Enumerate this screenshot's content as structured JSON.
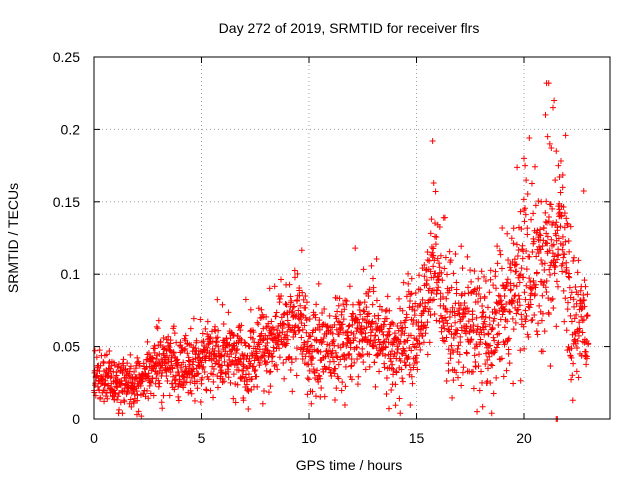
{
  "chart_data": {
    "type": "scatter",
    "title": "Day 272 of 2019, SRMTID for receiver flrs",
    "xlabel": "GPS time / hours",
    "ylabel": "SRMTID / TECUs",
    "xlim": [
      0,
      24
    ],
    "ylim": [
      0,
      0.25
    ],
    "xticks": [
      0,
      5,
      10,
      15,
      20
    ],
    "xtick_labels": [
      "0",
      "5",
      "10",
      "15",
      "20"
    ],
    "yticks": [
      0,
      0.05,
      0.1,
      0.15,
      0.2,
      0.25
    ],
    "ytick_labels": [
      "0",
      "0.05",
      "0.1",
      "0.15",
      "0.2",
      "0.25"
    ],
    "grid": true,
    "marker": "+",
    "color": "#ff0000",
    "trend": [
      {
        "x": 0.0,
        "y": 0.03
      },
      {
        "x": 1.0,
        "y": 0.025
      },
      {
        "x": 2.0,
        "y": 0.025
      },
      {
        "x": 3.0,
        "y": 0.04
      },
      {
        "x": 4.0,
        "y": 0.035
      },
      {
        "x": 5.0,
        "y": 0.04
      },
      {
        "x": 6.0,
        "y": 0.045
      },
      {
        "x": 7.0,
        "y": 0.04
      },
      {
        "x": 8.0,
        "y": 0.05
      },
      {
        "x": 9.0,
        "y": 0.065
      },
      {
        "x": 9.5,
        "y": 0.075
      },
      {
        "x": 10.0,
        "y": 0.045
      },
      {
        "x": 11.0,
        "y": 0.045
      },
      {
        "x": 12.0,
        "y": 0.06
      },
      {
        "x": 13.0,
        "y": 0.06
      },
      {
        "x": 14.0,
        "y": 0.05
      },
      {
        "x": 15.0,
        "y": 0.06
      },
      {
        "x": 15.8,
        "y": 0.1
      },
      {
        "x": 16.5,
        "y": 0.07
      },
      {
        "x": 17.5,
        "y": 0.065
      },
      {
        "x": 18.5,
        "y": 0.06
      },
      {
        "x": 19.5,
        "y": 0.085
      },
      {
        "x": 20.3,
        "y": 0.1
      },
      {
        "x": 21.0,
        "y": 0.11
      },
      {
        "x": 21.7,
        "y": 0.13
      },
      {
        "x": 22.3,
        "y": 0.07
      },
      {
        "x": 23.0,
        "y": 0.06
      }
    ],
    "spread": [
      {
        "x": 0.0,
        "s": 0.008
      },
      {
        "x": 3.0,
        "s": 0.01
      },
      {
        "x": 8.0,
        "s": 0.014
      },
      {
        "x": 9.5,
        "s": 0.016
      },
      {
        "x": 12.0,
        "s": 0.016
      },
      {
        "x": 14.0,
        "s": 0.015
      },
      {
        "x": 15.5,
        "s": 0.022
      },
      {
        "x": 18.0,
        "s": 0.022
      },
      {
        "x": 20.5,
        "s": 0.028
      },
      {
        "x": 22.0,
        "s": 0.025
      },
      {
        "x": 23.0,
        "s": 0.018
      }
    ],
    "n_points": 2200,
    "outliers": [
      {
        "x": 15.75,
        "y": 0.192
      },
      {
        "x": 15.8,
        "y": 0.163
      },
      {
        "x": 15.7,
        "y": 0.138
      },
      {
        "x": 12.15,
        "y": 0.118
      },
      {
        "x": 20.0,
        "y": 0.18
      },
      {
        "x": 20.05,
        "y": 0.175
      },
      {
        "x": 20.1,
        "y": 0.165
      },
      {
        "x": 21.05,
        "y": 0.232
      },
      {
        "x": 21.15,
        "y": 0.232
      },
      {
        "x": 21.4,
        "y": 0.22
      },
      {
        "x": 21.35,
        "y": 0.215
      },
      {
        "x": 21.0,
        "y": 0.21
      },
      {
        "x": 21.1,
        "y": 0.195
      },
      {
        "x": 21.2,
        "y": 0.19
      },
      {
        "x": 21.5,
        "y": 0.185
      },
      {
        "x": 21.6,
        "y": 0.175
      },
      {
        "x": 21.45,
        "y": 0.165
      },
      {
        "x": 21.8,
        "y": 0.16
      },
      {
        "x": 20.8,
        "y": 0.15
      },
      {
        "x": 21.6,
        "y": 0.147
      },
      {
        "x": 21.75,
        "y": 0.14
      },
      {
        "x": 21.55,
        "y": 0.0
      },
      {
        "x": 21.5,
        "y": 0.0
      },
      {
        "x": 2.0,
        "y": 0.003
      },
      {
        "x": 2.2,
        "y": 0.002
      }
    ]
  }
}
